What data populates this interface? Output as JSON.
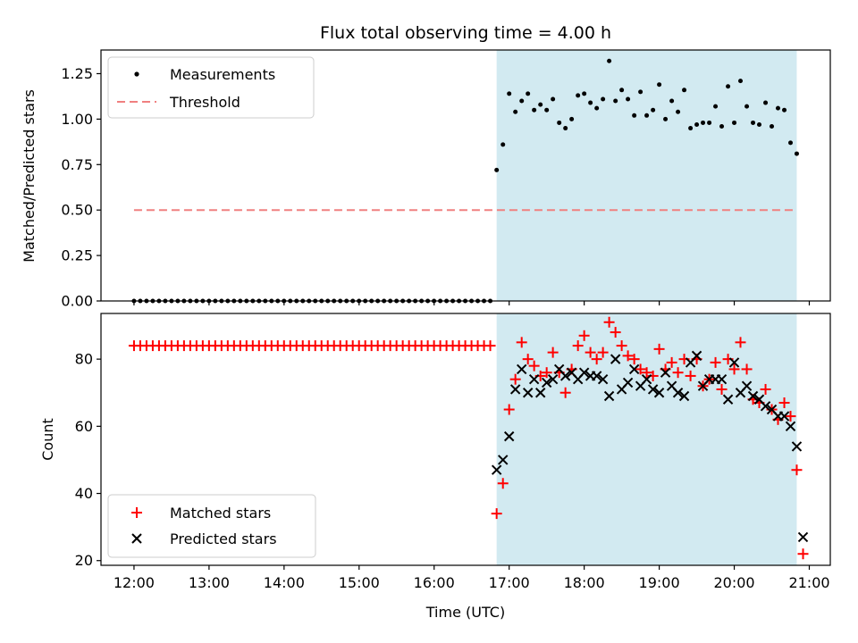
{
  "chart_data": {
    "title": "Flux total observing time = 4.00 h",
    "xlabel": "Time (UTC)",
    "x_ticks": [
      {
        "label": "12:00",
        "value": 12.0
      },
      {
        "label": "13:00",
        "value": 13.0
      },
      {
        "label": "14:00",
        "value": 14.0
      },
      {
        "label": "15:00",
        "value": 15.0
      },
      {
        "label": "16:00",
        "value": 16.0
      },
      {
        "label": "17:00",
        "value": 17.0
      },
      {
        "label": "18:00",
        "value": 18.0
      },
      {
        "label": "19:00",
        "value": 19.0
      },
      {
        "label": "20:00",
        "value": 20.0
      },
      {
        "label": "21:00",
        "value": 21.0
      }
    ],
    "xlim": [
      11.56,
      21.28
    ],
    "observing_window": {
      "start": 16.833,
      "end": 20.833,
      "color": "#add8e6"
    },
    "top": {
      "type": "scatter",
      "ylabel": "Matched/Predicted stars",
      "ylim": [
        0,
        1.38
      ],
      "y_ticks": [
        "0.00",
        "0.25",
        "0.50",
        "0.75",
        "1.00",
        "1.25"
      ],
      "y_tick_values": [
        0,
        0.25,
        0.5,
        0.75,
        1.0,
        1.25
      ],
      "threshold": {
        "value": 0.5,
        "x_start": 12.0,
        "x_end": 20.833,
        "color": "#f08080"
      },
      "legend": [
        {
          "label": "Measurements",
          "marker": "dot"
        },
        {
          "label": "Threshold",
          "marker": "dashed-line"
        }
      ],
      "measurements_pre_window": {
        "x_start": 12.0,
        "x_end": 16.8,
        "step": 0.0833,
        "value": 0.0
      },
      "measurements": [
        [
          16.833,
          0.72
        ],
        [
          16.917,
          0.86
        ],
        [
          17.0,
          1.14
        ],
        [
          17.083,
          1.04
        ],
        [
          17.167,
          1.1
        ],
        [
          17.25,
          1.14
        ],
        [
          17.333,
          1.05
        ],
        [
          17.417,
          1.08
        ],
        [
          17.5,
          1.05
        ],
        [
          17.583,
          1.11
        ],
        [
          17.667,
          0.98
        ],
        [
          17.75,
          0.95
        ],
        [
          17.833,
          1.0
        ],
        [
          17.917,
          1.13
        ],
        [
          18.0,
          1.14
        ],
        [
          18.083,
          1.09
        ],
        [
          18.167,
          1.06
        ],
        [
          18.25,
          1.11
        ],
        [
          18.333,
          1.32
        ],
        [
          18.417,
          1.1
        ],
        [
          18.5,
          1.16
        ],
        [
          18.583,
          1.11
        ],
        [
          18.667,
          1.02
        ],
        [
          18.75,
          1.15
        ],
        [
          18.833,
          1.02
        ],
        [
          18.917,
          1.05
        ],
        [
          19.0,
          1.19
        ],
        [
          19.083,
          1.0
        ],
        [
          19.167,
          1.1
        ],
        [
          19.25,
          1.04
        ],
        [
          19.333,
          1.16
        ],
        [
          19.417,
          0.95
        ],
        [
          19.5,
          0.97
        ],
        [
          19.583,
          0.98
        ],
        [
          19.667,
          0.98
        ],
        [
          19.75,
          1.07
        ],
        [
          19.833,
          0.96
        ],
        [
          19.917,
          1.18
        ],
        [
          20.0,
          0.98
        ],
        [
          20.083,
          1.21
        ],
        [
          20.167,
          1.07
        ],
        [
          20.25,
          0.98
        ],
        [
          20.333,
          0.97
        ],
        [
          20.417,
          1.09
        ],
        [
          20.5,
          0.96
        ],
        [
          20.583,
          1.06
        ],
        [
          20.667,
          1.05
        ],
        [
          20.75,
          0.87
        ],
        [
          20.833,
          0.81
        ]
      ]
    },
    "bottom": {
      "type": "scatter",
      "ylabel": "Count",
      "ylim": [
        18.6,
        93.6
      ],
      "y_ticks": [
        "20",
        "40",
        "60",
        "80"
      ],
      "y_tick_values": [
        20,
        40,
        60,
        80
      ],
      "legend": [
        {
          "label": "Matched stars",
          "marker": "plus",
          "color": "#ff0000"
        },
        {
          "label": "Predicted stars",
          "marker": "x",
          "color": "#000000"
        }
      ],
      "matched_pre_window": {
        "x_start": 12.0,
        "x_end": 16.8,
        "step": 0.0833,
        "value": 84
      },
      "matched": [
        [
          16.833,
          34
        ],
        [
          16.917,
          43
        ],
        [
          17.0,
          65
        ],
        [
          17.083,
          74
        ],
        [
          17.167,
          85
        ],
        [
          17.25,
          80
        ],
        [
          17.333,
          78
        ],
        [
          17.417,
          75
        ],
        [
          17.5,
          76
        ],
        [
          17.583,
          82
        ],
        [
          17.667,
          76
        ],
        [
          17.75,
          70
        ],
        [
          17.833,
          77
        ],
        [
          17.917,
          84
        ],
        [
          18.0,
          87
        ],
        [
          18.083,
          82
        ],
        [
          18.167,
          80
        ],
        [
          18.25,
          82
        ],
        [
          18.333,
          91
        ],
        [
          18.417,
          88
        ],
        [
          18.5,
          84
        ],
        [
          18.583,
          81
        ],
        [
          18.667,
          80
        ],
        [
          18.75,
          77
        ],
        [
          18.833,
          76
        ],
        [
          18.917,
          75
        ],
        [
          19.0,
          83
        ],
        [
          19.083,
          77
        ],
        [
          19.167,
          79
        ],
        [
          19.25,
          76
        ],
        [
          19.333,
          80
        ],
        [
          19.417,
          75
        ],
        [
          19.5,
          80
        ],
        [
          19.583,
          72
        ],
        [
          19.667,
          74
        ],
        [
          19.75,
          79
        ],
        [
          19.833,
          71
        ],
        [
          19.917,
          80
        ],
        [
          20.0,
          77
        ],
        [
          20.083,
          85
        ],
        [
          20.167,
          77
        ],
        [
          20.25,
          68
        ],
        [
          20.333,
          67
        ],
        [
          20.417,
          71
        ],
        [
          20.5,
          65
        ],
        [
          20.583,
          62
        ],
        [
          20.667,
          67
        ],
        [
          20.75,
          63
        ],
        [
          20.833,
          47
        ],
        [
          20.917,
          22
        ]
      ],
      "predicted": [
        [
          16.833,
          47
        ],
        [
          16.917,
          50
        ],
        [
          17.0,
          57
        ],
        [
          17.083,
          71
        ],
        [
          17.167,
          77
        ],
        [
          17.25,
          70
        ],
        [
          17.333,
          74
        ],
        [
          17.417,
          70
        ],
        [
          17.5,
          73
        ],
        [
          17.583,
          74
        ],
        [
          17.667,
          77
        ],
        [
          17.75,
          75
        ],
        [
          17.833,
          76
        ],
        [
          17.917,
          74
        ],
        [
          18.0,
          76
        ],
        [
          18.083,
          75
        ],
        [
          18.167,
          75
        ],
        [
          18.25,
          74
        ],
        [
          18.333,
          69
        ],
        [
          18.417,
          80
        ],
        [
          18.5,
          71
        ],
        [
          18.583,
          73
        ],
        [
          18.667,
          77
        ],
        [
          18.75,
          72
        ],
        [
          18.833,
          74
        ],
        [
          18.917,
          71
        ],
        [
          19.0,
          70
        ],
        [
          19.083,
          76
        ],
        [
          19.167,
          72
        ],
        [
          19.25,
          70
        ],
        [
          19.333,
          69
        ],
        [
          19.417,
          79
        ],
        [
          19.5,
          81
        ],
        [
          19.583,
          72
        ],
        [
          19.667,
          74
        ],
        [
          19.75,
          74
        ],
        [
          19.833,
          74
        ],
        [
          19.917,
          68
        ],
        [
          20.0,
          79
        ],
        [
          20.083,
          70
        ],
        [
          20.167,
          72
        ],
        [
          20.25,
          69
        ],
        [
          20.333,
          68
        ],
        [
          20.417,
          66
        ],
        [
          20.5,
          65
        ],
        [
          20.583,
          63
        ],
        [
          20.667,
          63
        ],
        [
          20.75,
          60
        ],
        [
          20.833,
          54
        ],
        [
          20.917,
          27
        ]
      ]
    }
  }
}
